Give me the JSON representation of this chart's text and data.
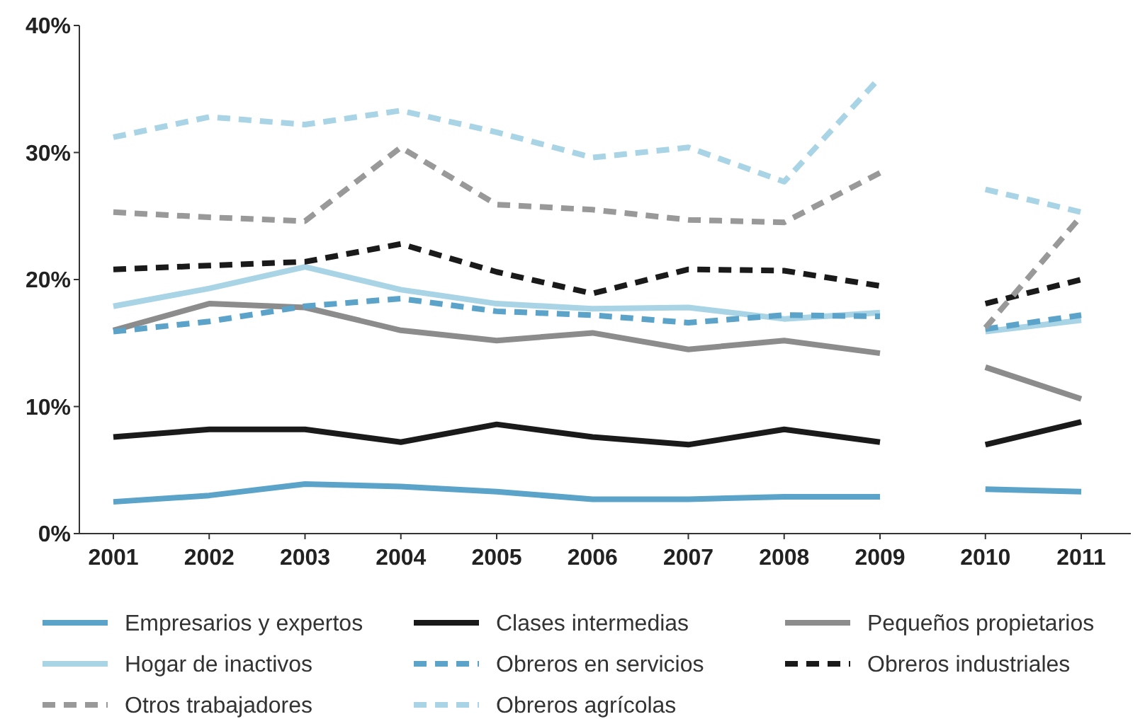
{
  "chart_data": {
    "type": "line",
    "categories": [
      "2001",
      "2002",
      "2003",
      "2004",
      "2005",
      "2006",
      "2007",
      "2008",
      "2009",
      null,
      "2010",
      "2011"
    ],
    "ylim": [
      0,
      40
    ],
    "yticks": [
      {
        "value": 0,
        "label": "0%"
      },
      {
        "value": 10,
        "label": "10%"
      },
      {
        "value": 20,
        "label": "20%"
      },
      {
        "value": 30,
        "label": "30%"
      },
      {
        "value": 40,
        "label": "40%"
      }
    ],
    "grid": false,
    "legend": "bottom",
    "marker": "none",
    "series": [
      {
        "name": "Empresarios y expertos",
        "color": "#5ba3c9",
        "line_style": "solid",
        "values": [
          2.5,
          3.0,
          3.9,
          3.7,
          3.3,
          2.7,
          2.7,
          2.9,
          2.9,
          null,
          3.5,
          3.3
        ]
      },
      {
        "name": "Clases intermedias",
        "color": "#1a1a1a",
        "line_style": "solid",
        "values": [
          7.6,
          8.2,
          8.2,
          7.2,
          8.6,
          7.6,
          7.0,
          8.2,
          7.2,
          null,
          7.0,
          8.8
        ]
      },
      {
        "name": "Pequeños propietarios",
        "color": "#8c8c8c",
        "line_style": "solid",
        "values": [
          16.0,
          18.1,
          17.8,
          16.0,
          15.2,
          15.8,
          14.5,
          15.2,
          14.2,
          null,
          13.1,
          10.6
        ]
      },
      {
        "name": "Hogar de inactivos",
        "color": "#a8d4e6",
        "line_style": "solid",
        "values": [
          17.9,
          19.3,
          21.0,
          19.2,
          18.1,
          17.7,
          17.8,
          16.9,
          17.4,
          null,
          15.9,
          16.8
        ]
      },
      {
        "name": "Obreros en servicios",
        "color": "#5ba3c9",
        "line_style": "dashed",
        "values": [
          15.9,
          16.7,
          17.9,
          18.5,
          17.5,
          17.2,
          16.6,
          17.2,
          17.1,
          null,
          16.1,
          17.2
        ]
      },
      {
        "name": "Obreros industriales",
        "color": "#1a1a1a",
        "line_style": "dashed",
        "values": [
          20.8,
          21.1,
          21.4,
          22.8,
          20.6,
          18.9,
          20.8,
          20.7,
          19.5,
          null,
          18.1,
          20.0
        ]
      },
      {
        "name": "Otros trabajadores",
        "color": "#999999",
        "line_style": "dashed",
        "values": [
          25.3,
          24.9,
          24.6,
          30.4,
          25.9,
          25.5,
          24.7,
          24.5,
          28.4,
          null,
          16.2,
          25.0
        ]
      },
      {
        "name": "Obreros agrícolas",
        "color": "#a8d4e6",
        "line_style": "dashed",
        "values": [
          31.2,
          32.8,
          32.2,
          33.3,
          31.6,
          29.6,
          30.4,
          27.7,
          35.9,
          null,
          27.1,
          25.3
        ]
      }
    ]
  }
}
